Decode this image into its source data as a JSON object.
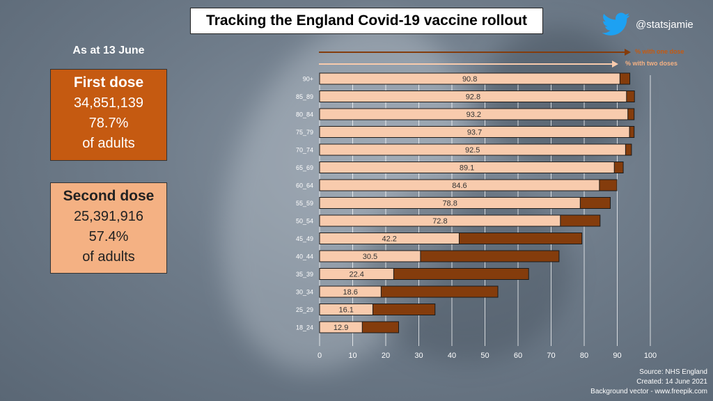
{
  "title": "Tracking the England Covid-19 vaccine rollout",
  "twitter_handle": "@statsjamie",
  "as_at": "As at 13 June",
  "first_dose": {
    "title": "First dose",
    "count": "34,851,139",
    "percent": "78.7%",
    "suffix": "of adults"
  },
  "second_dose": {
    "title": "Second dose",
    "count": "25,391,916",
    "percent": "57.4%",
    "suffix": "of adults"
  },
  "legend": {
    "one_dose": "% with one dose",
    "two_doses": "% with two doses"
  },
  "footer": {
    "source": "Source: NHS England",
    "created": "Created: 14 June 2021",
    "background": "Background vector - www.freepik.com"
  },
  "colors": {
    "one_dose": "#843c0c",
    "two_doses": "#f8cbad",
    "first_card": "#c55a11",
    "second_card": "#f4b183"
  },
  "chart_data": {
    "type": "bar",
    "orientation": "horizontal",
    "categories": [
      "90+",
      "85_89",
      "80_84",
      "75_79",
      "70_74",
      "65_69",
      "60_64",
      "55_59",
      "50_54",
      "45_49",
      "40_44",
      "35_39",
      "30_34",
      "25_29",
      "18_24"
    ],
    "series": [
      {
        "name": "% with one dose",
        "values": [
          93.8,
          95.2,
          95.1,
          95.1,
          94.3,
          91.8,
          89.9,
          87.9,
          84.8,
          79.3,
          72.4,
          63.2,
          53.9,
          34.9,
          23.9
        ]
      },
      {
        "name": "% with two doses",
        "values": [
          90.8,
          92.8,
          93.2,
          93.7,
          92.5,
          89.1,
          84.6,
          78.8,
          72.8,
          42.2,
          30.5,
          22.4,
          18.6,
          16.1,
          12.9
        ]
      }
    ],
    "data_labels": [
      "90.8",
      "92.8",
      "93.2",
      "93.7",
      "92.5",
      "89.1",
      "84.6",
      "78.8",
      "72.8",
      "42.2",
      "30.5",
      "22.4",
      "18.6",
      "16.1",
      "12.9"
    ],
    "xticks": [
      "0",
      "10",
      "20",
      "30",
      "40",
      "50",
      "60",
      "70",
      "80",
      "90",
      "100"
    ],
    "xlim": [
      0,
      100
    ],
    "grid": true,
    "legend_position": "top-right"
  }
}
